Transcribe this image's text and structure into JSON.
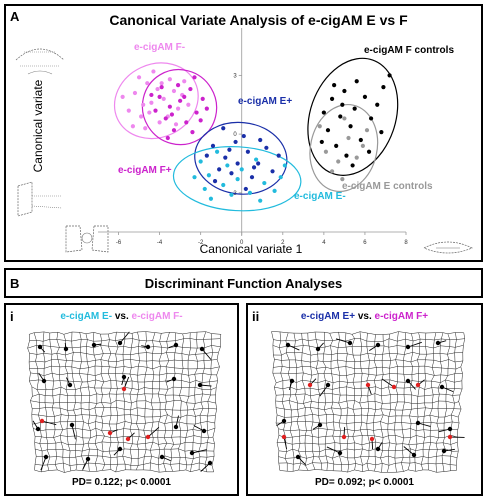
{
  "panel_a": {
    "letter": "A",
    "title": "Canonical Variate Analysis of e-cigAM E vs F",
    "xlabel": "Canonical variate 1",
    "ylabel": "Canonical variate",
    "groups": {
      "f_minus": {
        "label": "e-cigAM F-",
        "color": "#ee88ee"
      },
      "f_plus": {
        "label": "e-cigAM F+",
        "color": "#cc22cc"
      },
      "e_plus": {
        "label": "e-cigAM E+",
        "color": "#1a2fa8"
      },
      "e_minus": {
        "label": "e-cigAM E-",
        "color": "#22bbdd"
      },
      "f_controls": {
        "label": "e-cigAM F controls",
        "color": "#000000"
      },
      "e_controls": {
        "label": "e-cigAM E controls",
        "color": "#999999"
      }
    }
  },
  "chart_data": {
    "type": "scatter",
    "xlabel": "Canonical variate 1",
    "ylabel": "Canonical variate",
    "xlim": [
      -7,
      8
    ],
    "ylim": [
      -5,
      4.5
    ],
    "xticks": [
      "-6",
      "-4",
      "-2",
      "0",
      "2",
      "4",
      "6",
      "8"
    ],
    "yticks": [
      "3",
      "0",
      "-3"
    ],
    "series": [
      {
        "name": "e-cigAM F-",
        "color": "#ee88ee",
        "points": [
          [
            -5.2,
            2.1
          ],
          [
            -4.6,
            2.6
          ],
          [
            -4.1,
            2.3
          ],
          [
            -3.8,
            1.8
          ],
          [
            -5.5,
            1.2
          ],
          [
            -4.9,
            0.9
          ],
          [
            -4.4,
            1.6
          ],
          [
            -3.5,
            2.8
          ],
          [
            -3.1,
            1.3
          ],
          [
            -4.0,
            0.6
          ],
          [
            -5.8,
            1.9
          ],
          [
            -3.3,
            2.2
          ],
          [
            -4.7,
            0.3
          ],
          [
            -3.6,
            0.9
          ],
          [
            -2.9,
            2.0
          ],
          [
            -5.0,
            2.9
          ],
          [
            -4.3,
            3.2
          ],
          [
            -3.9,
            2.6
          ],
          [
            -2.6,
            1.5
          ],
          [
            -5.3,
            0.4
          ],
          [
            -4.5,
            1.1
          ],
          [
            -3.2,
            0.5
          ],
          [
            -2.8,
            2.7
          ],
          [
            -4.8,
            1.5
          ]
        ]
      },
      {
        "name": "e-cigAM F+",
        "color": "#cc22cc",
        "points": [
          [
            -4.0,
            1.9
          ],
          [
            -3.5,
            1.4
          ],
          [
            -3.0,
            1.7
          ],
          [
            -2.5,
            2.3
          ],
          [
            -3.7,
            0.8
          ],
          [
            -2.2,
            1.1
          ],
          [
            -4.2,
            1.2
          ],
          [
            -3.3,
            0.2
          ],
          [
            -2.7,
            0.6
          ],
          [
            -1.9,
            1.8
          ],
          [
            -3.9,
            2.4
          ],
          [
            -2.4,
            0.1
          ],
          [
            -3.1,
            2.5
          ],
          [
            -4.4,
            2.0
          ],
          [
            -2.0,
            0.7
          ],
          [
            -3.6,
            -0.2
          ],
          [
            -2.8,
            1.9
          ],
          [
            -1.7,
            1.3
          ],
          [
            -3.4,
            1.0
          ],
          [
            -2.3,
            2.9
          ]
        ]
      },
      {
        "name": "e-cigAM E+",
        "color": "#1a2fa8",
        "points": [
          [
            -1.4,
            -0.6
          ],
          [
            -0.8,
            -1.2
          ],
          [
            -0.3,
            -0.4
          ],
          [
            0.3,
            -0.9
          ],
          [
            -1.1,
            -1.8
          ],
          [
            0.8,
            -1.5
          ],
          [
            -0.5,
            -2.0
          ],
          [
            0.1,
            -0.1
          ],
          [
            1.2,
            -0.7
          ],
          [
            -1.7,
            -1.1
          ],
          [
            0.5,
            -2.2
          ],
          [
            -0.2,
            -1.5
          ],
          [
            1.5,
            -1.9
          ],
          [
            -0.9,
            0.3
          ],
          [
            0.9,
            -0.3
          ],
          [
            -1.3,
            -2.4
          ],
          [
            0.2,
            -2.8
          ],
          [
            1.8,
            -1.1
          ],
          [
            -0.6,
            -0.8
          ],
          [
            0.6,
            -1.7
          ]
        ]
      },
      {
        "name": "e-cigAM E-",
        "color": "#22bbdd",
        "points": [
          [
            -2.0,
            -1.4
          ],
          [
            -1.6,
            -2.1
          ],
          [
            -0.9,
            -2.6
          ],
          [
            -0.2,
            -2.3
          ],
          [
            0.4,
            -3.0
          ],
          [
            1.1,
            -2.5
          ],
          [
            -1.2,
            -0.9
          ],
          [
            -2.3,
            -2.2
          ],
          [
            -0.5,
            -3.1
          ],
          [
            1.6,
            -2.9
          ],
          [
            0.7,
            -1.3
          ],
          [
            -1.8,
            -2.8
          ],
          [
            0.0,
            -1.8
          ],
          [
            1.9,
            -2.2
          ],
          [
            -0.7,
            -1.6
          ],
          [
            2.1,
            -1.6
          ],
          [
            -1.5,
            -3.3
          ],
          [
            0.9,
            -3.4
          ]
        ]
      },
      {
        "name": "e-cigAM F controls",
        "color": "#000000",
        "points": [
          [
            4.4,
            1.8
          ],
          [
            5.0,
            2.2
          ],
          [
            5.5,
            1.3
          ],
          [
            6.0,
            1.9
          ],
          [
            4.8,
            0.9
          ],
          [
            5.3,
            0.4
          ],
          [
            6.3,
            0.8
          ],
          [
            4.2,
            0.2
          ],
          [
            5.8,
            -0.3
          ],
          [
            4.6,
            -0.6
          ],
          [
            6.6,
            1.5
          ],
          [
            5.1,
            -1.1
          ],
          [
            4.0,
            1.1
          ],
          [
            6.9,
            2.4
          ],
          [
            5.6,
            2.7
          ],
          [
            4.9,
            1.5
          ],
          [
            6.2,
            -0.9
          ],
          [
            3.9,
            -0.4
          ],
          [
            5.4,
            -1.6
          ],
          [
            6.8,
            0.1
          ],
          [
            4.5,
            2.5
          ],
          [
            7.2,
            3.0
          ]
        ]
      },
      {
        "name": "e-cigAM E controls",
        "color": "#999999",
        "points": [
          [
            4.1,
            -0.9
          ],
          [
            4.7,
            -1.4
          ],
          [
            5.2,
            -0.2
          ],
          [
            5.9,
            -0.6
          ],
          [
            4.4,
            -1.9
          ],
          [
            5.6,
            -1.2
          ],
          [
            3.8,
            0.4
          ],
          [
            5.0,
            0.8
          ],
          [
            6.1,
            0.2
          ],
          [
            4.9,
            -2.3
          ]
        ]
      }
    ]
  },
  "panel_b": {
    "letter": "B",
    "title": "Discriminant Function Analyses",
    "i": {
      "numeral": "i",
      "left": "e-cigAM E-",
      "vs": "vs.",
      "right": "e-cigAM F-",
      "left_color": "#22bbdd",
      "right_color": "#ee88ee",
      "pd": "PD= 0.122; p< 0.0001"
    },
    "ii": {
      "numeral": "ii",
      "left": "e-cigAM E+",
      "vs": "vs.",
      "right": "e-cigAM F+",
      "left_color": "#1a2fa8",
      "right_color": "#cc22cc",
      "pd": "PD= 0.092; p< 0.0001"
    }
  }
}
